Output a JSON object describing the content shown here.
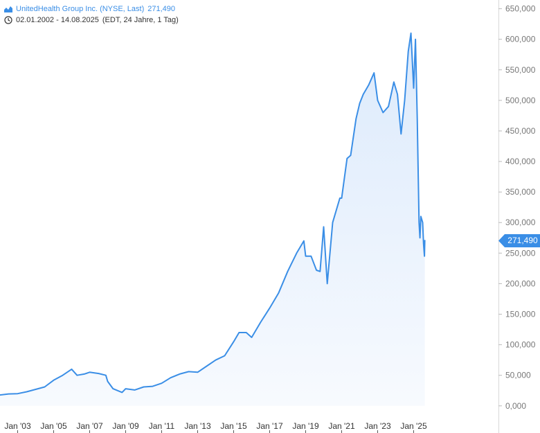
{
  "legend": {
    "series_label": "UnitedHealth Group Inc. (NYSE, Last)",
    "series_value": "271,490",
    "date_range": "02.01.2002 - 14.08.2025",
    "range_info": "(EDT, 24 Jahre, 1 Tag)",
    "series_icon": "area-chart-icon",
    "clock_icon": "clock-icon"
  },
  "price_tag": "271,490",
  "colors": {
    "line": "#3a8ee6",
    "fill": "#e6f1fd",
    "tag": "#3a8ee6",
    "axis": "#d8d8d8",
    "tick_text": "#777777"
  },
  "chart_data": {
    "type": "area",
    "title": "UnitedHealth Group Inc. (NYSE, Last)",
    "xlabel": "",
    "ylabel": "",
    "ylim": [
      0,
      650000
    ],
    "xlim": [
      2002.0,
      2025.62
    ],
    "y_ticks": [
      "650,000",
      "600,000",
      "550,000",
      "500,000",
      "450,000",
      "400,000",
      "350,000",
      "300,000",
      "250,000",
      "200,000",
      "150,000",
      "100,000",
      "50,000",
      "0,000"
    ],
    "x_ticks": [
      "Jan '03",
      "Jan '05",
      "Jan '07",
      "Jan '09",
      "Jan '11",
      "Jan '13",
      "Jan '15",
      "Jan '17",
      "Jan '19",
      "Jan '21",
      "Jan '23",
      "Jan '25"
    ],
    "last_value": 271490,
    "grid": false,
    "series": [
      {
        "name": "UnitedHealth Group Inc. (NYSE, Last)",
        "points": [
          [
            2002.0,
            17700
          ],
          [
            2002.5,
            19500
          ],
          [
            2003.0,
            20000
          ],
          [
            2003.5,
            23000
          ],
          [
            2004.0,
            27000
          ],
          [
            2004.5,
            31000
          ],
          [
            2005.0,
            42000
          ],
          [
            2005.5,
            50000
          ],
          [
            2006.0,
            60000
          ],
          [
            2006.3,
            50000
          ],
          [
            2006.7,
            52000
          ],
          [
            2007.0,
            55000
          ],
          [
            2007.5,
            53000
          ],
          [
            2007.9,
            50000
          ],
          [
            2008.0,
            40000
          ],
          [
            2008.3,
            28000
          ],
          [
            2008.8,
            22000
          ],
          [
            2009.0,
            28000
          ],
          [
            2009.5,
            26000
          ],
          [
            2010.0,
            31000
          ],
          [
            2010.5,
            32000
          ],
          [
            2011.0,
            37000
          ],
          [
            2011.5,
            46000
          ],
          [
            2012.0,
            52000
          ],
          [
            2012.5,
            56000
          ],
          [
            2013.0,
            55000
          ],
          [
            2013.5,
            65000
          ],
          [
            2014.0,
            75000
          ],
          [
            2014.5,
            82000
          ],
          [
            2015.0,
            105000
          ],
          [
            2015.3,
            120000
          ],
          [
            2015.7,
            120000
          ],
          [
            2016.0,
            112000
          ],
          [
            2016.5,
            137000
          ],
          [
            2017.0,
            160000
          ],
          [
            2017.5,
            185000
          ],
          [
            2018.0,
            220000
          ],
          [
            2018.5,
            250000
          ],
          [
            2018.9,
            270000
          ],
          [
            2019.0,
            245000
          ],
          [
            2019.3,
            245000
          ],
          [
            2019.6,
            222000
          ],
          [
            2019.8,
            220000
          ],
          [
            2020.0,
            293000
          ],
          [
            2020.2,
            200000
          ],
          [
            2020.5,
            300000
          ],
          [
            2020.9,
            340000
          ],
          [
            2021.0,
            340000
          ],
          [
            2021.3,
            405000
          ],
          [
            2021.5,
            410000
          ],
          [
            2021.8,
            470000
          ],
          [
            2022.0,
            495000
          ],
          [
            2022.2,
            510000
          ],
          [
            2022.5,
            525000
          ],
          [
            2022.8,
            545000
          ],
          [
            2023.0,
            500000
          ],
          [
            2023.3,
            480000
          ],
          [
            2023.6,
            490000
          ],
          [
            2023.9,
            530000
          ],
          [
            2024.1,
            510000
          ],
          [
            2024.3,
            445000
          ],
          [
            2024.5,
            500000
          ],
          [
            2024.7,
            580000
          ],
          [
            2024.85,
            610000
          ],
          [
            2025.0,
            520000
          ],
          [
            2025.1,
            600000
          ],
          [
            2025.2,
            470000
          ],
          [
            2025.3,
            300000
          ],
          [
            2025.35,
            275000
          ],
          [
            2025.4,
            310000
          ],
          [
            2025.5,
            300000
          ],
          [
            2025.55,
            265000
          ],
          [
            2025.6,
            245000
          ],
          [
            2025.62,
            271490
          ]
        ]
      }
    ]
  }
}
